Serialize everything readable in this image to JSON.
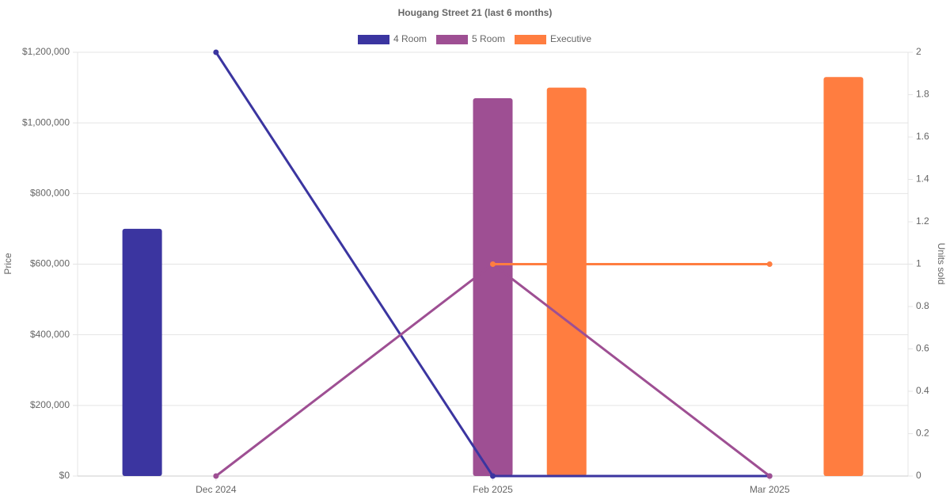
{
  "chart_data": {
    "type": "bar-line",
    "title": "Hougang Street 21 (last 6 months)",
    "y_label": "Price",
    "y2_label": "Units sold",
    "categories": [
      "Dec 2024",
      "Feb 2025",
      "Mar 2025"
    ],
    "series": [
      {
        "name": "4 Room",
        "color": "#3b35a0",
        "values": [
          700000,
          null,
          null
        ],
        "units": [
          2,
          0,
          0
        ]
      },
      {
        "name": "5 Room",
        "color": "#9e4f93",
        "values": [
          null,
          1070000,
          null
        ],
        "units": [
          0,
          1,
          0
        ]
      },
      {
        "name": "Executive",
        "color": "#ff7d40",
        "values": [
          null,
          1100000,
          1130000
        ],
        "units": [
          null,
          1,
          1
        ]
      }
    ],
    "ylim": [
      0,
      1200000
    ],
    "yticks": [
      {
        "value": 0,
        "label": "$0"
      },
      {
        "value": 200000,
        "label": "$200,000"
      },
      {
        "value": 400000,
        "label": "$400,000"
      },
      {
        "value": 600000,
        "label": "$600,000"
      },
      {
        "value": 800000,
        "label": "$800,000"
      },
      {
        "value": 1000000,
        "label": "$1,000,000"
      },
      {
        "value": 1200000,
        "label": "$1,200,000"
      }
    ],
    "y2lim": [
      0,
      2
    ],
    "y2ticks": [
      0,
      0.2,
      0.4,
      0.6,
      0.8,
      1,
      1.2,
      1.4,
      1.6,
      1.8,
      2
    ],
    "grid": true,
    "legend": "top"
  }
}
